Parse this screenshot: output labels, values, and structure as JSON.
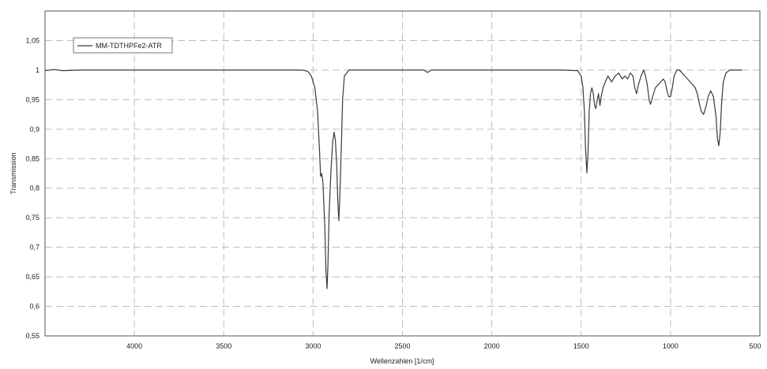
{
  "chart_data": {
    "type": "line",
    "title": "",
    "xlabel": "Wellenzahlen [1/cm]",
    "ylabel": "Transmission",
    "xlim": [
      4500,
      500
    ],
    "ylim": [
      0.55,
      1.1
    ],
    "x_reversed": true,
    "grid": true,
    "legend_position": "top-left",
    "xticks": [
      4000,
      3500,
      3000,
      2500,
      2000,
      1500,
      1000,
      500
    ],
    "xtick_labels": [
      "4000",
      "3500",
      "3000",
      "2500",
      "2000",
      "1500",
      "1000",
      "500"
    ],
    "yticks": [
      0.55,
      0.6,
      0.65,
      0.7,
      0.75,
      0.8,
      0.85,
      0.9,
      0.95,
      1.0,
      1.05
    ],
    "ytick_labels": [
      "0,55",
      "0,6",
      "0,65",
      "0,7",
      "0,75",
      "0,8",
      "0,85",
      "0,9",
      "0,95",
      "1",
      "1,05"
    ],
    "series": [
      {
        "name": "MM-TDTHPFe2-ATR",
        "color": "#3a3a3a",
        "points": [
          [
            4500,
            0.999
          ],
          [
            4450,
            1.001
          ],
          [
            4400,
            0.999
          ],
          [
            4300,
            1.0
          ],
          [
            4200,
            1.0
          ],
          [
            4000,
            1.0
          ],
          [
            3800,
            1.0
          ],
          [
            3600,
            1.0
          ],
          [
            3400,
            1.0
          ],
          [
            3200,
            1.0
          ],
          [
            3060,
            1.0
          ],
          [
            3030,
            0.998
          ],
          [
            3010,
            0.99
          ],
          [
            2990,
            0.97
          ],
          [
            2975,
            0.93
          ],
          [
            2965,
            0.87
          ],
          [
            2958,
            0.82
          ],
          [
            2952,
            0.825
          ],
          [
            2945,
            0.81
          ],
          [
            2935,
            0.74
          ],
          [
            2928,
            0.66
          ],
          [
            2922,
            0.63
          ],
          [
            2917,
            0.67
          ],
          [
            2910,
            0.76
          ],
          [
            2900,
            0.83
          ],
          [
            2890,
            0.88
          ],
          [
            2882,
            0.895
          ],
          [
            2875,
            0.88
          ],
          [
            2868,
            0.84
          ],
          [
            2862,
            0.78
          ],
          [
            2856,
            0.745
          ],
          [
            2850,
            0.79
          ],
          [
            2842,
            0.87
          ],
          [
            2835,
            0.95
          ],
          [
            2825,
            0.99
          ],
          [
            2800,
            1.0
          ],
          [
            2700,
            1.0
          ],
          [
            2500,
            1.0
          ],
          [
            2380,
            1.0
          ],
          [
            2360,
            0.996
          ],
          [
            2340,
            1.0
          ],
          [
            2200,
            1.0
          ],
          [
            2000,
            1.0
          ],
          [
            1800,
            1.0
          ],
          [
            1600,
            1.0
          ],
          [
            1520,
            0.999
          ],
          [
            1500,
            0.99
          ],
          [
            1490,
            0.97
          ],
          [
            1482,
            0.93
          ],
          [
            1476,
            0.87
          ],
          [
            1468,
            0.826
          ],
          [
            1462,
            0.86
          ],
          [
            1455,
            0.93
          ],
          [
            1448,
            0.96
          ],
          [
            1440,
            0.97
          ],
          [
            1432,
            0.96
          ],
          [
            1425,
            0.94
          ],
          [
            1418,
            0.935
          ],
          [
            1410,
            0.95
          ],
          [
            1403,
            0.96
          ],
          [
            1395,
            0.94
          ],
          [
            1388,
            0.955
          ],
          [
            1378,
            0.97
          ],
          [
            1365,
            0.98
          ],
          [
            1350,
            0.99
          ],
          [
            1330,
            0.98
          ],
          [
            1310,
            0.99
          ],
          [
            1290,
            0.995
          ],
          [
            1270,
            0.985
          ],
          [
            1255,
            0.99
          ],
          [
            1240,
            0.985
          ],
          [
            1225,
            0.995
          ],
          [
            1210,
            0.99
          ],
          [
            1200,
            0.97
          ],
          [
            1190,
            0.96
          ],
          [
            1180,
            0.975
          ],
          [
            1165,
            0.99
          ],
          [
            1150,
            1.0
          ],
          [
            1140,
            0.99
          ],
          [
            1130,
            0.975
          ],
          [
            1120,
            0.95
          ],
          [
            1112,
            0.942
          ],
          [
            1100,
            0.955
          ],
          [
            1085,
            0.97
          ],
          [
            1070,
            0.975
          ],
          [
            1055,
            0.98
          ],
          [
            1040,
            0.985
          ],
          [
            1030,
            0.98
          ],
          [
            1020,
            0.965
          ],
          [
            1010,
            0.955
          ],
          [
            1000,
            0.955
          ],
          [
            990,
            0.97
          ],
          [
            980,
            0.99
          ],
          [
            965,
            1.0
          ],
          [
            950,
            1.0
          ],
          [
            935,
            0.995
          ],
          [
            920,
            0.99
          ],
          [
            905,
            0.985
          ],
          [
            890,
            0.98
          ],
          [
            875,
            0.975
          ],
          [
            862,
            0.97
          ],
          [
            850,
            0.96
          ],
          [
            840,
            0.945
          ],
          [
            828,
            0.93
          ],
          [
            815,
            0.925
          ],
          [
            800,
            0.94
          ],
          [
            790,
            0.955
          ],
          [
            775,
            0.965
          ],
          [
            760,
            0.955
          ],
          [
            745,
            0.92
          ],
          [
            738,
            0.885
          ],
          [
            730,
            0.872
          ],
          [
            722,
            0.895
          ],
          [
            715,
            0.94
          ],
          [
            705,
            0.98
          ],
          [
            690,
            0.995
          ],
          [
            670,
            1.0
          ],
          [
            650,
            1.0
          ],
          [
            620,
            1.0
          ],
          [
            600,
            1.0
          ]
        ]
      }
    ]
  }
}
